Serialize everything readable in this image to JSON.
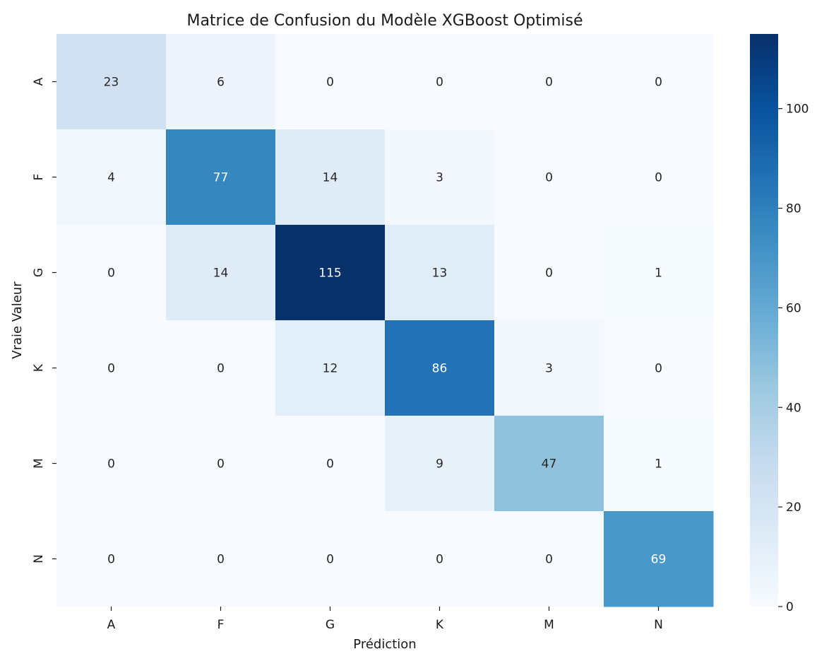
{
  "chart_data": {
    "type": "heatmap",
    "title": "Matrice de Confusion du Modèle XGBoost Optimisé",
    "xlabel": "Prédiction",
    "ylabel": "Vraie Valeur",
    "x_categories": [
      "A",
      "F",
      "G",
      "K",
      "M",
      "N"
    ],
    "y_categories": [
      "A",
      "F",
      "G",
      "K",
      "M",
      "N"
    ],
    "matrix": [
      [
        23,
        6,
        0,
        0,
        0,
        0
      ],
      [
        4,
        77,
        14,
        3,
        0,
        0
      ],
      [
        0,
        14,
        115,
        13,
        0,
        1
      ],
      [
        0,
        0,
        12,
        86,
        3,
        0
      ],
      [
        0,
        0,
        0,
        9,
        47,
        1
      ],
      [
        0,
        0,
        0,
        0,
        0,
        69
      ]
    ],
    "colormap": "Blues",
    "vmin": 0,
    "vmax": 115,
    "colorbar_ticks": [
      0,
      20,
      40,
      60,
      80,
      100
    ]
  }
}
